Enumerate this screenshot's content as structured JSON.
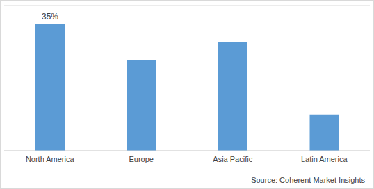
{
  "chart_data": {
    "type": "bar",
    "categories": [
      "North America",
      "Europe",
      "Asia Pacific",
      "Latin America"
    ],
    "values": [
      35,
      25,
      30,
      10
    ],
    "value_labels": [
      "35%",
      null,
      null,
      null
    ],
    "data_labels": true,
    "color": "#5b9bd5",
    "ylim": [
      0,
      40
    ],
    "yticks": [
      0,
      5,
      10,
      15,
      20,
      25,
      30,
      35,
      40
    ],
    "grid": true,
    "tick_labels": "x",
    "annotations": [
      "Source: Coherent Market Insights"
    ]
  }
}
